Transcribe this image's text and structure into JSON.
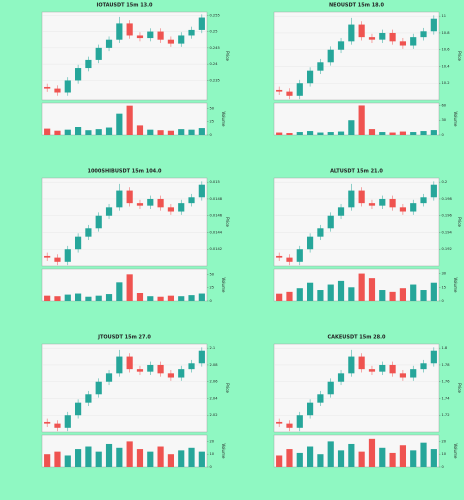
{
  "chart_data": [
    {
      "type": "candlestick",
      "title": "IOTAUSDT 15m 13.0",
      "ylabel": "Price",
      "y2label": "Volume",
      "open": [
        0.233,
        0.2325,
        0.2313,
        0.235,
        0.2388,
        0.2413,
        0.245,
        0.2475,
        0.2525,
        0.2488,
        0.248,
        0.25,
        0.2475,
        0.2463,
        0.2488,
        0.2505
      ],
      "high": [
        0.234,
        0.2335,
        0.236,
        0.2398,
        0.2423,
        0.246,
        0.2485,
        0.2545,
        0.2535,
        0.2498,
        0.251,
        0.251,
        0.2485,
        0.2498,
        0.2515,
        0.2553
      ],
      "low": [
        0.2315,
        0.2303,
        0.2303,
        0.234,
        0.2378,
        0.2403,
        0.244,
        0.2465,
        0.2478,
        0.247,
        0.247,
        0.2465,
        0.2453,
        0.2453,
        0.2478,
        0.2495
      ],
      "close": [
        0.2325,
        0.2313,
        0.235,
        0.2388,
        0.2413,
        0.245,
        0.2475,
        0.2525,
        0.2488,
        0.248,
        0.25,
        0.2475,
        0.2463,
        0.2488,
        0.2505,
        0.2543
      ],
      "volume": [
        12,
        8,
        10,
        15,
        9,
        11,
        14,
        40,
        55,
        18,
        10,
        9,
        8,
        11,
        10,
        13
      ],
      "ylim": [
        0.229,
        0.256
      ],
      "yticks": [
        0.235,
        0.24,
        0.245,
        0.25,
        0.255
      ],
      "y2lim": [
        0,
        60
      ],
      "y2ticks": [
        0,
        25,
        50
      ],
      "up_color": "#26a69a",
      "down_color": "#ef5350",
      "grid": true
    },
    {
      "type": "candlestick",
      "title": "NEOUSDT 15m 18.0",
      "ylabel": "Price",
      "y2label": "Volume",
      "open": [
        10.12,
        10.1,
        10.05,
        10.2,
        10.35,
        10.45,
        10.6,
        10.7,
        10.9,
        10.75,
        10.72,
        10.8,
        10.7,
        10.65,
        10.75,
        10.82
      ],
      "high": [
        10.16,
        10.14,
        10.24,
        10.39,
        10.49,
        10.64,
        10.74,
        10.98,
        10.94,
        10.79,
        10.84,
        10.84,
        10.74,
        10.79,
        10.86,
        11.01
      ],
      "low": [
        10.06,
        10.01,
        10.01,
        10.16,
        10.31,
        10.41,
        10.56,
        10.66,
        10.71,
        10.68,
        10.68,
        10.66,
        10.61,
        10.61,
        10.71,
        10.78
      ],
      "close": [
        10.1,
        10.05,
        10.2,
        10.35,
        10.45,
        10.6,
        10.7,
        10.9,
        10.75,
        10.72,
        10.8,
        10.7,
        10.65,
        10.75,
        10.82,
        10.97
      ],
      "volume": [
        5,
        4,
        6,
        8,
        5,
        6,
        7,
        30,
        60,
        12,
        6,
        5,
        7,
        6,
        8,
        10
      ],
      "ylim": [
        10.0,
        11.05
      ],
      "yticks": [
        10.2,
        10.4,
        10.6,
        10.8,
        11
      ],
      "y2lim": [
        0,
        65
      ],
      "y2ticks": [
        0,
        30,
        60
      ],
      "up_color": "#26a69a",
      "down_color": "#ef5350",
      "grid": true
    },
    {
      "type": "candlestick",
      "title": "1000SHIBUSDT 15m 104.0",
      "ylabel": "Price",
      "y2label": "Volume",
      "open": [
        0.01412,
        0.0141,
        0.01405,
        0.0142,
        0.01435,
        0.01445,
        0.0146,
        0.0147,
        0.0149,
        0.01475,
        0.01472,
        0.0148,
        0.0147,
        0.01465,
        0.01475,
        0.01482
      ],
      "high": [
        0.01416,
        0.01414,
        0.01424,
        0.01439,
        0.01449,
        0.01464,
        0.01474,
        0.01498,
        0.01494,
        0.01479,
        0.01484,
        0.01484,
        0.01474,
        0.01479,
        0.01486,
        0.01501
      ],
      "low": [
        0.01406,
        0.01401,
        0.01401,
        0.01416,
        0.01431,
        0.01441,
        0.01456,
        0.01466,
        0.01471,
        0.01468,
        0.01468,
        0.01466,
        0.01461,
        0.01461,
        0.01471,
        0.01478
      ],
      "close": [
        0.0141,
        0.01405,
        0.0142,
        0.01435,
        0.01445,
        0.0146,
        0.0147,
        0.0149,
        0.01475,
        0.01472,
        0.0148,
        0.0147,
        0.01465,
        0.01475,
        0.01482,
        0.01497
      ],
      "volume": [
        10,
        9,
        12,
        14,
        8,
        10,
        13,
        35,
        50,
        15,
        9,
        8,
        10,
        9,
        11,
        14
      ],
      "ylim": [
        0.014,
        0.01505
      ],
      "yticks": [
        0.0142,
        0.0144,
        0.0146,
        0.0148,
        0.015
      ],
      "y2lim": [
        0,
        60
      ],
      "y2ticks": [
        0,
        25,
        50
      ],
      "up_color": "#26a69a",
      "down_color": "#ef5350",
      "grid": true
    },
    {
      "type": "candlestick",
      "title": "ALTUSDT 15m 21.0",
      "ylabel": "Price",
      "y2label": "Volume",
      "open": [
        0.1912,
        0.191,
        0.1905,
        0.192,
        0.1935,
        0.1945,
        0.196,
        0.197,
        0.199,
        0.1975,
        0.1972,
        0.198,
        0.197,
        0.1965,
        0.1975,
        0.1982
      ],
      "high": [
        0.1916,
        0.1914,
        0.1924,
        0.1939,
        0.1949,
        0.1964,
        0.1974,
        0.1998,
        0.1994,
        0.1979,
        0.1984,
        0.1984,
        0.1974,
        0.1979,
        0.1986,
        0.2001
      ],
      "low": [
        0.1906,
        0.1901,
        0.1901,
        0.1916,
        0.1931,
        0.1941,
        0.1956,
        0.1966,
        0.1971,
        0.1968,
        0.1968,
        0.1966,
        0.1961,
        0.1961,
        0.1971,
        0.1978
      ],
      "close": [
        0.191,
        0.1905,
        0.192,
        0.1935,
        0.1945,
        0.196,
        0.197,
        0.199,
        0.1975,
        0.1972,
        0.198,
        0.197,
        0.1965,
        0.1975,
        0.1982,
        0.1997
      ],
      "volume": [
        8,
        10,
        14,
        20,
        12,
        18,
        22,
        15,
        30,
        25,
        12,
        10,
        14,
        18,
        12,
        20
      ],
      "ylim": [
        0.19,
        0.2005
      ],
      "yticks": [
        0.192,
        0.194,
        0.196,
        0.198,
        0.2
      ],
      "y2lim": [
        0,
        35
      ],
      "y2ticks": [
        0,
        15,
        30
      ],
      "up_color": "#26a69a",
      "down_color": "#ef5350",
      "grid": true
    },
    {
      "type": "candlestick",
      "title": "JTOUSDT 15m 27.0",
      "ylabel": "Price",
      "y2label": "Volume",
      "open": [
        2.012,
        2.01,
        2.005,
        2.02,
        2.035,
        2.045,
        2.06,
        2.07,
        2.09,
        2.075,
        2.072,
        2.08,
        2.07,
        2.065,
        2.075,
        2.082
      ],
      "high": [
        2.016,
        2.014,
        2.024,
        2.039,
        2.049,
        2.064,
        2.074,
        2.098,
        2.094,
        2.079,
        2.084,
        2.084,
        2.074,
        2.079,
        2.086,
        2.101
      ],
      "low": [
        2.006,
        2.001,
        2.001,
        2.016,
        2.031,
        2.041,
        2.056,
        2.066,
        2.071,
        2.068,
        2.068,
        2.066,
        2.061,
        2.061,
        2.071,
        2.078
      ],
      "close": [
        2.01,
        2.005,
        2.02,
        2.035,
        2.045,
        2.06,
        2.07,
        2.09,
        2.075,
        2.072,
        2.08,
        2.07,
        2.065,
        2.075,
        2.082,
        2.097
      ],
      "volume": [
        10,
        12,
        9,
        14,
        16,
        12,
        18,
        15,
        20,
        14,
        12,
        16,
        10,
        13,
        15,
        12
      ],
      "ylim": [
        2.0,
        2.105
      ],
      "yticks": [
        2.02,
        2.04,
        2.06,
        2.08,
        2.1
      ],
      "y2lim": [
        0,
        25
      ],
      "y2ticks": [
        0,
        10,
        20
      ],
      "up_color": "#26a69a",
      "down_color": "#ef5350",
      "grid": true
    },
    {
      "type": "candlestick",
      "title": "CAKEUSDT 15m 28.0",
      "ylabel": "Price",
      "y2label": "Volume",
      "open": [
        1.712,
        1.71,
        1.705,
        1.72,
        1.735,
        1.745,
        1.76,
        1.77,
        1.79,
        1.775,
        1.772,
        1.78,
        1.77,
        1.765,
        1.775,
        1.782
      ],
      "high": [
        1.716,
        1.714,
        1.724,
        1.739,
        1.749,
        1.764,
        1.774,
        1.798,
        1.794,
        1.779,
        1.784,
        1.784,
        1.774,
        1.779,
        1.786,
        1.801
      ],
      "low": [
        1.706,
        1.701,
        1.701,
        1.716,
        1.731,
        1.741,
        1.756,
        1.766,
        1.771,
        1.768,
        1.768,
        1.766,
        1.761,
        1.761,
        1.771,
        1.778
      ],
      "close": [
        1.71,
        1.705,
        1.72,
        1.735,
        1.745,
        1.76,
        1.77,
        1.79,
        1.775,
        1.772,
        1.78,
        1.77,
        1.765,
        1.775,
        1.782,
        1.797
      ],
      "volume": [
        9,
        14,
        11,
        16,
        10,
        20,
        13,
        18,
        12,
        22,
        15,
        11,
        17,
        13,
        19,
        14
      ],
      "ylim": [
        1.7,
        1.805
      ],
      "yticks": [
        1.72,
        1.74,
        1.76,
        1.78,
        1.8
      ],
      "y2lim": [
        0,
        25
      ],
      "y2ticks": [
        0,
        10,
        20
      ],
      "up_color": "#26a69a",
      "down_color": "#ef5350",
      "grid": true
    }
  ]
}
